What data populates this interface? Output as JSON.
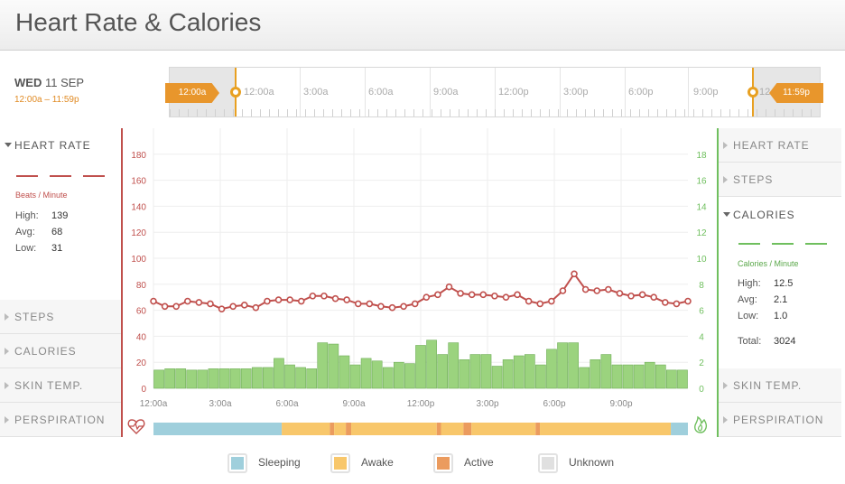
{
  "header": {
    "title": "Heart Rate & Calories"
  },
  "date": {
    "weekday": "WED",
    "day": "11 SEP",
    "range": "12:00a – 11:59p"
  },
  "timeline": {
    "labels": [
      "12:00a",
      "3:00a",
      "6:00a",
      "9:00a",
      "12:00p",
      "3:00p",
      "6:00p",
      "9:00p",
      "12"
    ],
    "start_tag": "12:00a",
    "end_tag": "11:59p"
  },
  "left_panel": {
    "active": {
      "title": "HEART RATE",
      "unit": "Beats / Minute",
      "stats": [
        {
          "label": "High:",
          "value": "139"
        },
        {
          "label": "Avg:",
          "value": "68"
        },
        {
          "label": "Low:",
          "value": "31"
        }
      ]
    },
    "items": [
      "STEPS",
      "CALORIES",
      "SKIN TEMP.",
      "PERSPIRATION"
    ]
  },
  "right_panel": {
    "items_top": [
      "HEART RATE",
      "STEPS"
    ],
    "active": {
      "title": "CALORIES",
      "unit": "Calories / Minute",
      "stats": [
        {
          "label": "High:",
          "value": "12.5"
        },
        {
          "label": "Avg:",
          "value": "2.1"
        },
        {
          "label": "Low:",
          "value": "1.0"
        }
      ],
      "total_label": "Total:",
      "total_value": "3024"
    },
    "items_bottom": [
      "SKIN TEMP.",
      "PERSPIRATION"
    ]
  },
  "colors": {
    "heart": "#c0504d",
    "calories": "#6fbf5e",
    "calories_bar": "#9bd37e",
    "sleeping": "#9fcfdc",
    "awake": "#f8c76b",
    "active": "#eb9b5e",
    "unknown": "#e0e0e0",
    "accent": "#e8962c"
  },
  "icons": {
    "left_axis": "heart-rate-icon",
    "right_axis": "flame-icon"
  },
  "chart_data": {
    "type": "bar",
    "x_tick_labels": [
      "12:00a",
      "3:00a",
      "6:00a",
      "9:00a",
      "12:00p",
      "3:00p",
      "6:00p",
      "9:00p"
    ],
    "heart_rate_axis": {
      "ticks": [
        0,
        20,
        40,
        60,
        80,
        100,
        120,
        140,
        160,
        180
      ],
      "ylim": [
        0,
        200
      ]
    },
    "calories_axis": {
      "ticks": [
        0,
        2,
        4,
        6,
        8,
        10,
        12,
        14,
        16,
        18
      ],
      "ylim": [
        0,
        20
      ]
    },
    "series": [
      {
        "type": "line",
        "values": [
          67,
          63,
          63,
          67,
          66,
          65,
          61,
          63,
          64,
          62,
          67,
          68,
          68,
          67,
          71,
          71,
          69,
          68,
          65,
          65,
          63,
          62,
          63,
          65,
          70,
          72,
          78,
          73,
          72,
          72,
          71,
          70,
          72,
          67,
          65,
          67,
          75,
          88,
          76,
          75,
          76,
          73,
          71,
          72,
          70,
          66,
          65,
          67
        ]
      },
      {
        "type": "bar",
        "values": [
          1.4,
          1.5,
          1.5,
          1.4,
          1.4,
          1.5,
          1.5,
          1.5,
          1.5,
          1.6,
          1.6,
          2.3,
          1.8,
          1.6,
          1.5,
          3.5,
          3.4,
          2.5,
          1.8,
          2.3,
          2.1,
          1.6,
          2.0,
          1.9,
          3.3,
          3.7,
          2.6,
          3.5,
          2.2,
          2.6,
          2.6,
          1.7,
          2.2,
          2.5,
          2.6,
          1.8,
          3.0,
          3.5,
          3.5,
          1.6,
          2.2,
          2.6,
          1.8,
          1.8,
          1.8,
          2.0,
          1.8,
          1.4,
          1.4
        ]
      }
    ],
    "activity_bar": [
      {
        "state": "sleeping",
        "from": 0,
        "to": 0.24
      },
      {
        "state": "awake",
        "from": 0.24,
        "to": 0.33
      },
      {
        "state": "active",
        "from": 0.33,
        "to": 0.338
      },
      {
        "state": "awake",
        "from": 0.338,
        "to": 0.36
      },
      {
        "state": "active",
        "from": 0.36,
        "to": 0.37
      },
      {
        "state": "awake",
        "from": 0.37,
        "to": 0.53
      },
      {
        "state": "active",
        "from": 0.53,
        "to": 0.538
      },
      {
        "state": "awake",
        "from": 0.538,
        "to": 0.58
      },
      {
        "state": "active",
        "from": 0.58,
        "to": 0.595
      },
      {
        "state": "awake",
        "from": 0.595,
        "to": 0.715
      },
      {
        "state": "active",
        "from": 0.715,
        "to": 0.723
      },
      {
        "state": "awake",
        "from": 0.723,
        "to": 0.968
      },
      {
        "state": "sleeping",
        "from": 0.968,
        "to": 1
      }
    ]
  },
  "legend": [
    {
      "key": "sleeping",
      "label": "Sleeping"
    },
    {
      "key": "awake",
      "label": "Awake"
    },
    {
      "key": "active",
      "label": "Active"
    },
    {
      "key": "unknown",
      "label": "Unknown"
    }
  ]
}
